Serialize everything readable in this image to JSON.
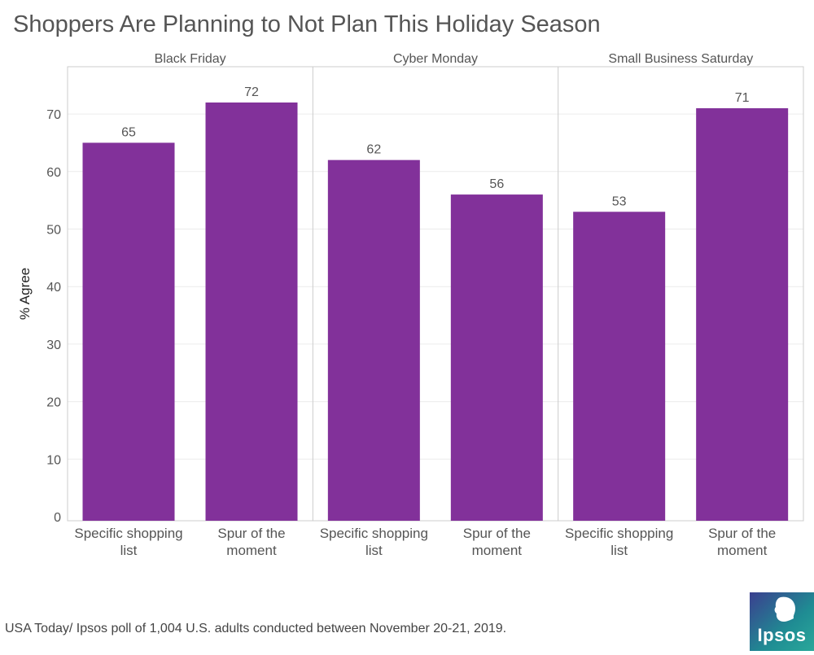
{
  "title": "Shoppers Are Planning to Not Plan This Holiday Season",
  "footnote": "USA Today/ Ipsos poll of 1,004 U.S. adults conducted between November 20-21, 2019.",
  "logo": {
    "text": "Ipsos"
  },
  "colors": {
    "bar": "#82319a",
    "text": "#555555",
    "grid": "#ececec",
    "border": "#cccccc"
  },
  "chart_data": {
    "type": "bar",
    "title": "Shoppers Are Planning to Not Plan This Holiday Season",
    "ylabel": "% Agree",
    "ylim": [
      0,
      75
    ],
    "yticks": [
      0,
      10,
      20,
      30,
      40,
      50,
      60,
      70
    ],
    "grid": true,
    "categories": [
      [
        "Specific shopping",
        "list"
      ],
      [
        "Spur of the",
        "moment"
      ]
    ],
    "panels": [
      {
        "name": "Black Friday",
        "values": [
          65,
          72
        ]
      },
      {
        "name": "Cyber Monday",
        "values": [
          62,
          56
        ]
      },
      {
        "name": "Small Business Saturday",
        "values": [
          53,
          71
        ]
      }
    ]
  }
}
